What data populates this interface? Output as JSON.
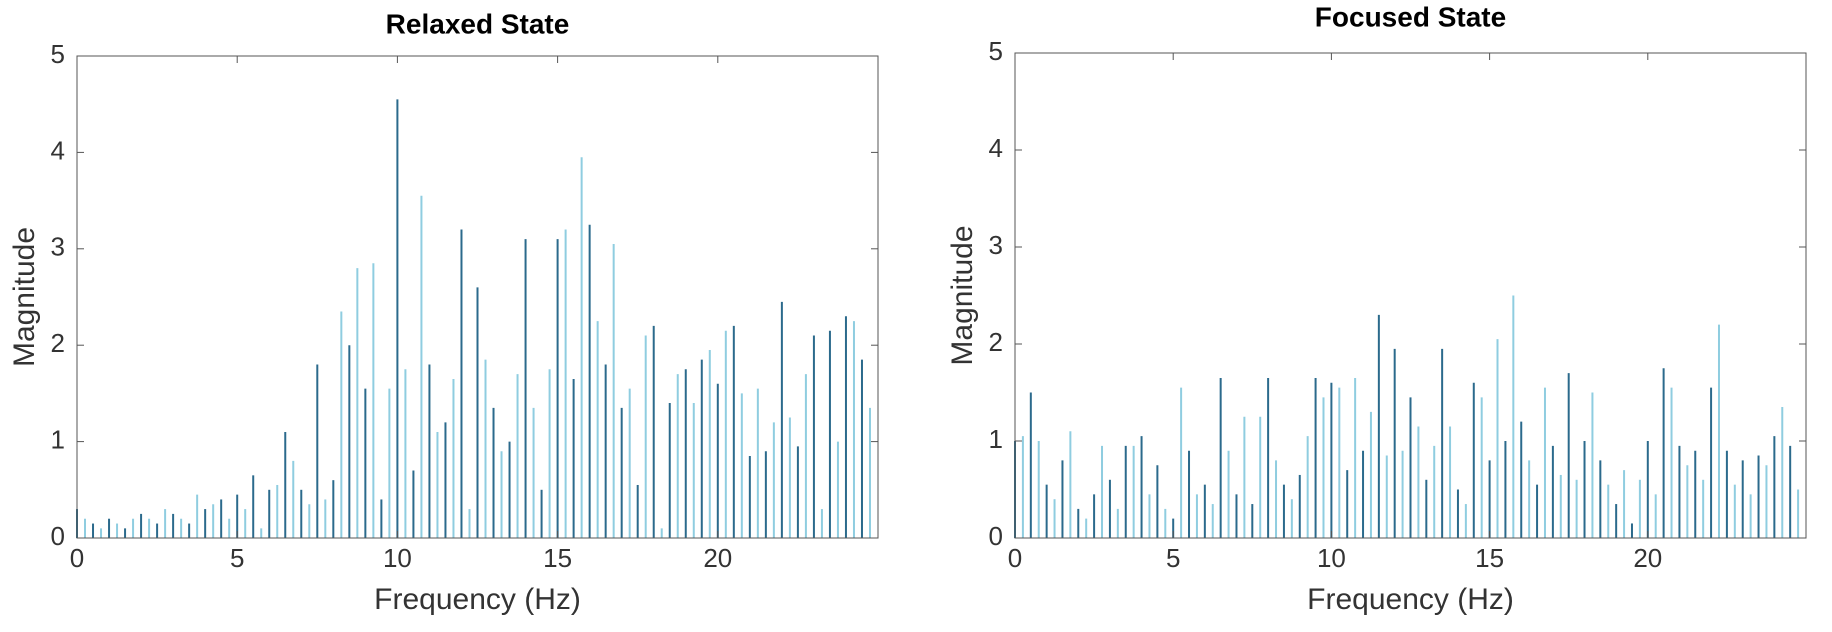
{
  "chart_data": [
    {
      "type": "bar",
      "title": "Relaxed State",
      "xlabel": "Frequency (Hz)",
      "ylabel": "Magnitude",
      "x": [
        0,
        0.25,
        0.5,
        0.75,
        1,
        1.25,
        1.5,
        1.75,
        2,
        2.25,
        2.5,
        2.75,
        3,
        3.25,
        3.5,
        3.75,
        4,
        4.25,
        4.5,
        4.75,
        5,
        5.25,
        5.5,
        5.75,
        6,
        6.25,
        6.5,
        6.75,
        7,
        7.25,
        7.5,
        7.75,
        8,
        8.25,
        8.5,
        8.75,
        9,
        9.25,
        9.5,
        9.75,
        10,
        10.25,
        10.5,
        10.75,
        11,
        11.25,
        11.5,
        11.75,
        12,
        12.25,
        12.5,
        12.75,
        13,
        13.25,
        13.5,
        13.75,
        14,
        14.25,
        14.5,
        14.75,
        15,
        15.25,
        15.5,
        15.75,
        16,
        16.25,
        16.5,
        16.75,
        17,
        17.25,
        17.5,
        17.75,
        18,
        18.25,
        18.5,
        18.75,
        19,
        19.25,
        19.5,
        19.75,
        20,
        20.25,
        20.5,
        20.75,
        21,
        21.25,
        21.5,
        21.75,
        22,
        22.25,
        22.5,
        22.75,
        23,
        23.25,
        23.5,
        23.75,
        24,
        24.25,
        24.5,
        24.75
      ],
      "values": [
        0.3,
        0.2,
        0.15,
        0.1,
        0.2,
        0.15,
        0.1,
        0.2,
        0.25,
        0.2,
        0.15,
        0.3,
        0.25,
        0.2,
        0.15,
        0.45,
        0.3,
        0.35,
        0.4,
        0.2,
        0.45,
        0.3,
        0.65,
        0.1,
        0.5,
        0.55,
        1.1,
        0.8,
        0.5,
        0.35,
        1.8,
        0.4,
        0.6,
        2.35,
        2.0,
        2.8,
        1.55,
        2.85,
        0.4,
        1.55,
        4.55,
        1.75,
        0.7,
        3.55,
        1.8,
        1.1,
        1.2,
        1.65,
        3.2,
        0.3,
        2.6,
        1.85,
        1.35,
        0.9,
        1.0,
        1.7,
        3.1,
        1.35,
        0.5,
        1.75,
        3.1,
        3.2,
        1.65,
        3.95,
        3.25,
        2.25,
        1.8,
        3.05,
        1.35,
        1.55,
        0.55,
        2.1,
        2.2,
        0.1,
        1.4,
        1.7,
        1.75,
        1.4,
        1.85,
        1.95,
        1.6,
        2.15,
        2.2,
        1.5,
        0.85,
        1.55,
        0.9,
        1.2,
        2.45,
        1.25,
        0.95,
        1.7,
        2.1,
        0.3,
        2.15,
        1.0,
        2.3,
        2.25,
        1.85,
        1.35
      ],
      "colors": [
        "#2b6a8c",
        "#8fcde0"
      ],
      "xlim": [
        0,
        25
      ],
      "xticks": [
        0,
        5,
        10,
        15,
        20
      ],
      "ylim": [
        0,
        5
      ],
      "yticks": [
        0,
        1,
        2,
        3,
        4,
        5
      ]
    },
    {
      "type": "bar",
      "title": "Focused State",
      "xlabel": "Frequency (Hz)",
      "ylabel": "Magnitude",
      "x": [
        0,
        0.25,
        0.5,
        0.75,
        1,
        1.25,
        1.5,
        1.75,
        2,
        2.25,
        2.5,
        2.75,
        3,
        3.25,
        3.5,
        3.75,
        4,
        4.25,
        4.5,
        4.75,
        5,
        5.25,
        5.5,
        5.75,
        6,
        6.25,
        6.5,
        6.75,
        7,
        7.25,
        7.5,
        7.75,
        8,
        8.25,
        8.5,
        8.75,
        9,
        9.25,
        9.5,
        9.75,
        10,
        10.25,
        10.5,
        10.75,
        11,
        11.25,
        11.5,
        11.75,
        12,
        12.25,
        12.5,
        12.75,
        13,
        13.25,
        13.5,
        13.75,
        14,
        14.25,
        14.5,
        14.75,
        15,
        15.25,
        15.5,
        15.75,
        16,
        16.25,
        16.5,
        16.75,
        17,
        17.25,
        17.5,
        17.75,
        18,
        18.25,
        18.5,
        18.75,
        19,
        19.25,
        19.5,
        19.75,
        20,
        20.25,
        20.5,
        20.75,
        21,
        21.25,
        21.5,
        21.75,
        22,
        22.25,
        22.5,
        22.75,
        23,
        23.25,
        23.5,
        23.75,
        24,
        24.25,
        24.5,
        24.75
      ],
      "values": [
        1.0,
        1.05,
        1.5,
        1.0,
        0.55,
        0.4,
        0.8,
        1.1,
        0.3,
        0.2,
        0.45,
        0.95,
        0.6,
        0.3,
        0.95,
        0.95,
        1.05,
        0.45,
        0.75,
        0.3,
        0.2,
        1.55,
        0.9,
        0.45,
        0.55,
        0.35,
        1.65,
        0.9,
        0.45,
        1.25,
        0.35,
        1.25,
        1.65,
        0.8,
        0.55,
        0.4,
        0.65,
        1.05,
        1.65,
        1.45,
        1.6,
        1.55,
        0.7,
        1.65,
        0.9,
        1.3,
        2.3,
        0.85,
        1.95,
        0.9,
        1.45,
        1.15,
        0.6,
        0.95,
        1.95,
        1.15,
        0.5,
        0.35,
        1.6,
        1.45,
        0.8,
        2.05,
        1.0,
        2.5,
        1.2,
        0.8,
        0.55,
        1.55,
        0.95,
        0.65,
        1.7,
        0.6,
        1.0,
        1.5,
        0.8,
        0.55,
        0.35,
        0.7,
        0.15,
        0.6,
        1.0,
        0.45,
        1.75,
        1.55,
        0.95,
        0.75,
        0.9,
        0.6,
        1.55,
        2.2,
        0.9,
        0.55,
        0.8,
        0.45,
        0.85,
        0.75,
        1.05,
        1.35,
        0.95,
        0.5
      ],
      "colors": [
        "#2b6a8c",
        "#8fcde0"
      ],
      "xlim": [
        0,
        25
      ],
      "xticks": [
        0,
        5,
        10,
        15,
        20
      ],
      "ylim": [
        0,
        5
      ],
      "yticks": [
        0,
        1,
        2,
        3,
        4,
        5
      ]
    }
  ]
}
